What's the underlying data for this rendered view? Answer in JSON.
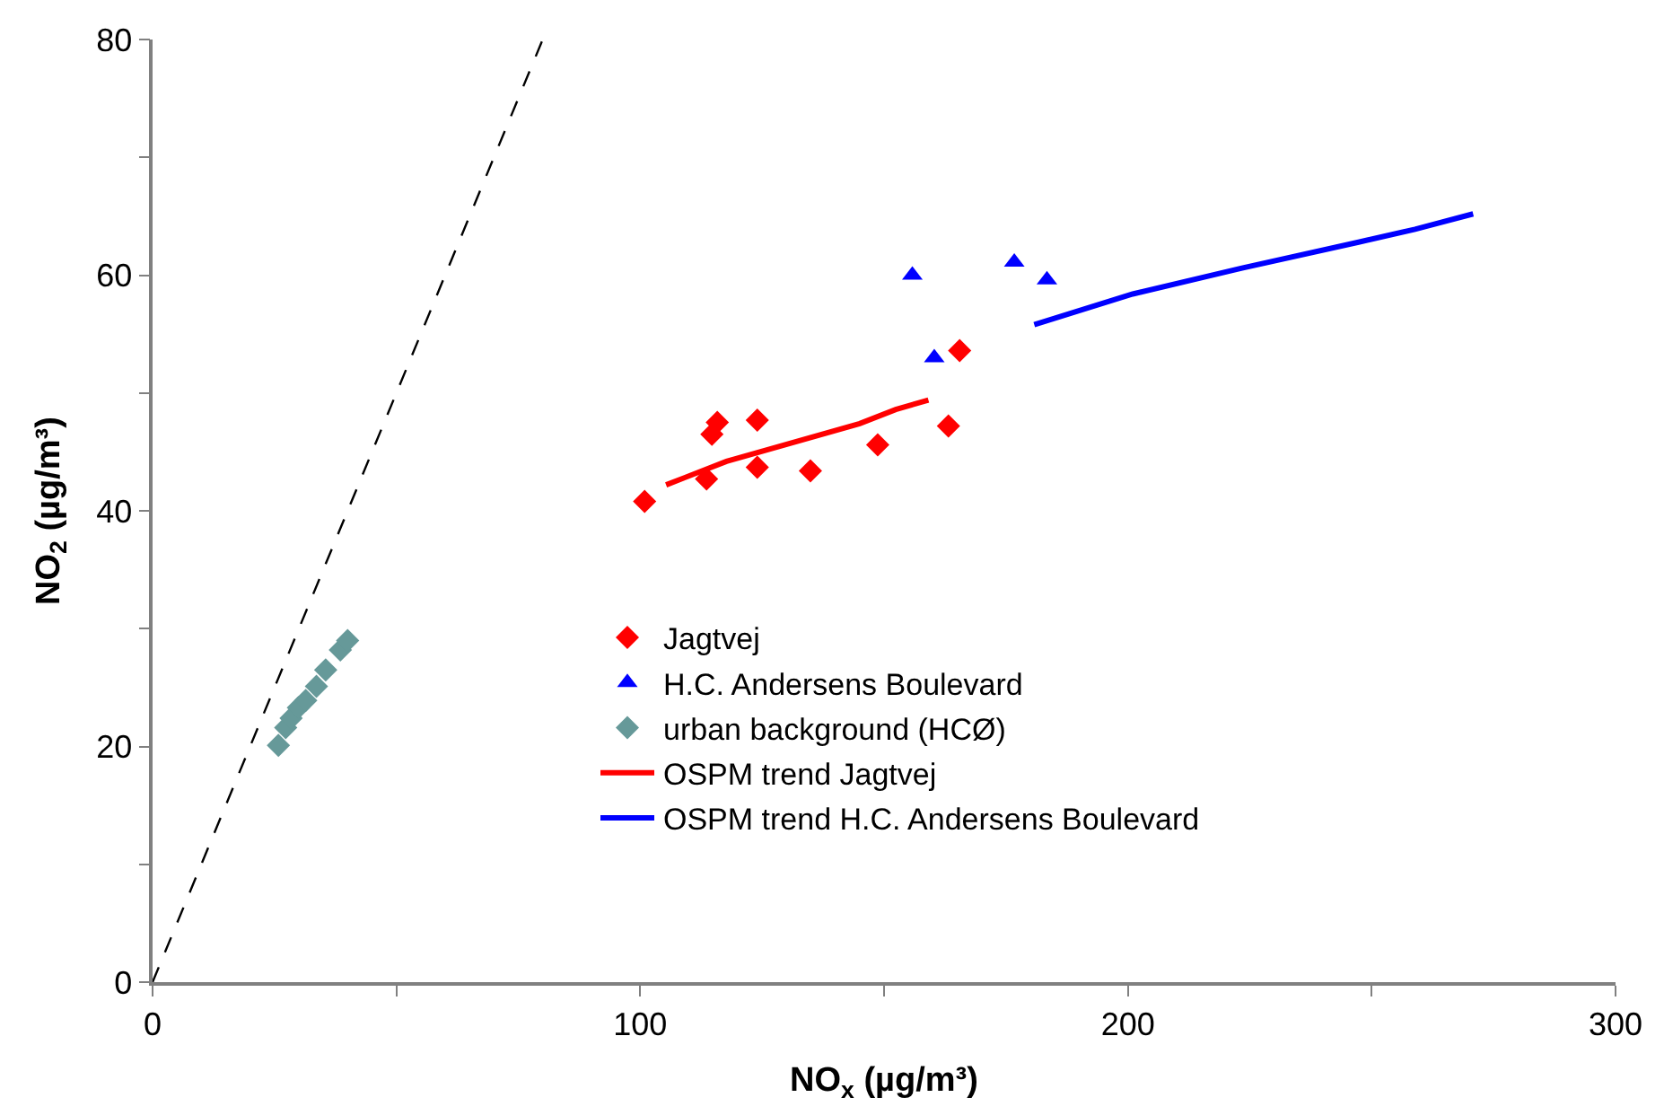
{
  "chart_data": {
    "type": "scatter",
    "xlabel": "NO$_{x}$ (µg/m³)",
    "ylabel": "NO$_{2}$ (µg/m³)",
    "xlim": [
      0,
      300
    ],
    "ylim": [
      0,
      80
    ],
    "xticks": [
      0,
      {
        "value": 50,
        "label": null
      },
      100,
      {
        "value": 150,
        "label": null
      },
      200,
      {
        "value": 250,
        "label": null
      },
      300
    ],
    "yticks": [
      0,
      {
        "value": 10,
        "label": null
      },
      20,
      {
        "value": 30,
        "label": null
      },
      40,
      {
        "value": 50,
        "label": null
      },
      60,
      {
        "value": 70,
        "label": null
      },
      80
    ],
    "legend": "bottom right",
    "series": [
      {
        "name": "Jagtvej",
        "marker": "diamond",
        "color": "#ff0000",
        "x": [
          100.9,
          113.6,
          114.7,
          115.8,
          124,
          124,
          134.9,
          148.7,
          163.2,
          165.5
        ],
        "values": [
          40.8,
          42.7,
          46.5,
          47.5,
          47.7,
          43.7,
          43.4,
          45.6,
          47.2,
          53.6
        ]
      },
      {
        "name": "H.C. Andersens Boulevard",
        "marker": "triangle",
        "color": "#0000ff",
        "x": [
          155.8,
          160.3,
          176.7,
          183.4
        ],
        "values": [
          60.0,
          53.0,
          61.1,
          59.6
        ]
      },
      {
        "name": "urban background (HCØ)",
        "marker": "diamond",
        "color": "#669999",
        "x": [
          25.8,
          27.3,
          28.4,
          29.9,
          31.4,
          33.6,
          35.5,
          38.5,
          40
        ],
        "values": [
          20.1,
          21.6,
          22.4,
          23.3,
          23.9,
          25.1,
          26.5,
          28.2,
          29
        ]
      },
      {
        "name": "OSPM trend Jagtvej",
        "type": "line",
        "line_style": "solid",
        "color": "#ff0000",
        "x": [
          105.3,
          117.7,
          145,
          152.4,
          159.1
        ],
        "values": [
          42.2,
          44.2,
          47.4,
          48.6,
          49.4
        ]
      },
      {
        "name": "OSPM trend H.C. Andersens Boulevard",
        "type": "line",
        "line_style": "solid",
        "color": "#0000ff",
        "x": [
          180.8,
          201,
          223.4,
          247.3,
          258.9,
          270.8
        ],
        "values": [
          55.8,
          58.4,
          60.6,
          62.8,
          63.9,
          65.2
        ]
      },
      {
        "type": "line",
        "line_style": "dashed",
        "color": "#000000",
        "x": [
          0,
          80
        ],
        "values": [
          0,
          80
        ]
      }
    ]
  }
}
